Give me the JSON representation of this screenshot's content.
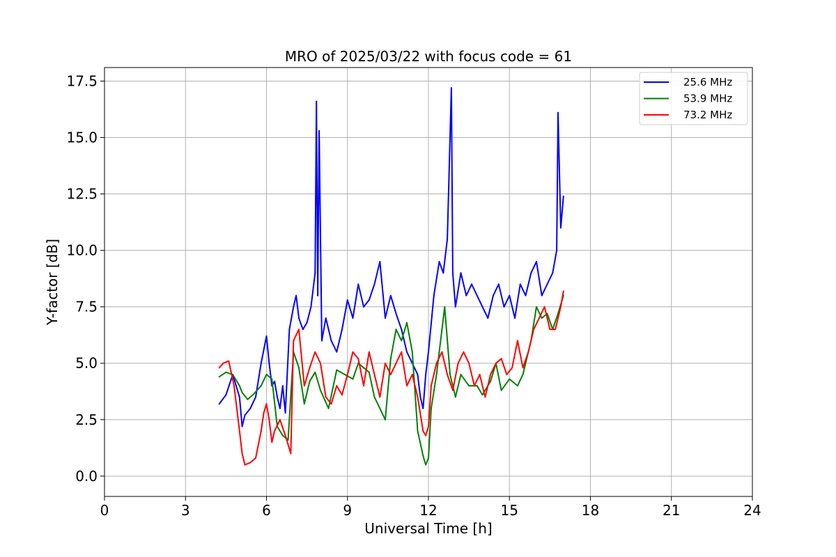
{
  "chart_data": {
    "type": "line",
    "title": "MRO of 2025/03/22 with focus code = 61",
    "xlabel": "Universal Time [h]",
    "ylabel": "Y-factor [dB]",
    "xlim": [
      0,
      24
    ],
    "ylim": [
      -0.9,
      18.1
    ],
    "xticks": [
      0,
      3,
      6,
      9,
      12,
      15,
      18,
      21,
      24
    ],
    "xtick_labels": [
      "0",
      "3",
      "6",
      "9",
      "12",
      "15",
      "18",
      "21",
      "24"
    ],
    "yticks": [
      0.0,
      2.5,
      5.0,
      7.5,
      10.0,
      12.5,
      15.0,
      17.5
    ],
    "ytick_labels": [
      "0.0",
      "2.5",
      "5.0",
      "7.5",
      "10.0",
      "12.5",
      "15.0",
      "17.5"
    ],
    "grid": true,
    "legend_position": "top-right",
    "series": [
      {
        "name": "25.6 MHz",
        "color": "#0000ff",
        "x": [
          4.25,
          4.5,
          4.75,
          5.0,
          5.1,
          5.2,
          5.4,
          5.6,
          5.8,
          6.0,
          6.1,
          6.2,
          6.3,
          6.4,
          6.5,
          6.6,
          6.7,
          6.85,
          7.0,
          7.1,
          7.2,
          7.35,
          7.5,
          7.65,
          7.8,
          7.85,
          7.9,
          7.95,
          8.05,
          8.2,
          8.4,
          8.6,
          8.8,
          9.0,
          9.2,
          9.4,
          9.6,
          9.8,
          10.0,
          10.2,
          10.4,
          10.6,
          10.8,
          11.0,
          11.2,
          11.4,
          11.6,
          11.7,
          11.8,
          11.9,
          12.0,
          12.2,
          12.4,
          12.55,
          12.7,
          12.85,
          12.9,
          13.0,
          13.2,
          13.4,
          13.6,
          13.8,
          14.0,
          14.2,
          14.4,
          14.6,
          14.8,
          15.0,
          15.2,
          15.4,
          15.6,
          15.8,
          16.0,
          16.2,
          16.4,
          16.6,
          16.75,
          16.8,
          16.9,
          17.0
        ],
        "y": [
          3.2,
          3.6,
          4.5,
          3.5,
          2.2,
          2.7,
          3.0,
          3.5,
          5.0,
          6.2,
          5.0,
          4.0,
          4.2,
          3.5,
          3.0,
          4.0,
          2.8,
          6.5,
          7.5,
          8.0,
          7.0,
          6.5,
          6.8,
          7.5,
          9.0,
          16.6,
          8.0,
          15.3,
          6.0,
          7.0,
          6.0,
          5.5,
          6.5,
          7.8,
          7.0,
          8.5,
          7.5,
          7.8,
          8.5,
          9.5,
          7.0,
          8.0,
          7.2,
          6.5,
          5.5,
          5.0,
          4.5,
          3.5,
          3.0,
          4.5,
          5.5,
          8.0,
          9.5,
          9.0,
          10.5,
          17.2,
          9.0,
          7.5,
          9.0,
          8.0,
          8.5,
          8.0,
          7.5,
          7.0,
          8.0,
          8.5,
          7.5,
          8.0,
          7.0,
          8.5,
          8.0,
          9.0,
          9.5,
          8.0,
          8.5,
          9.0,
          10.0,
          16.1,
          11.0,
          12.4
        ]
      },
      {
        "name": "53.9 MHz",
        "color": "#008000",
        "x": [
          4.25,
          4.5,
          4.75,
          5.0,
          5.1,
          5.3,
          5.5,
          5.8,
          6.0,
          6.2,
          6.4,
          6.6,
          6.8,
          7.0,
          7.2,
          7.4,
          7.6,
          7.8,
          8.0,
          8.3,
          8.6,
          8.9,
          9.2,
          9.4,
          9.6,
          9.8,
          10.0,
          10.2,
          10.4,
          10.6,
          10.8,
          11.0,
          11.2,
          11.4,
          11.6,
          11.8,
          11.9,
          12.0,
          12.1,
          12.3,
          12.5,
          12.6,
          12.8,
          13.0,
          13.2,
          13.5,
          13.8,
          14.0,
          14.3,
          14.5,
          14.7,
          15.0,
          15.3,
          15.5,
          15.8,
          16.0,
          16.2,
          16.4,
          16.6,
          16.8,
          17.0
        ],
        "y": [
          4.4,
          4.6,
          4.5,
          4.0,
          3.7,
          3.4,
          3.6,
          4.0,
          4.5,
          4.3,
          2.2,
          1.8,
          1.6,
          5.5,
          4.8,
          3.2,
          4.2,
          4.6,
          3.8,
          3.0,
          4.7,
          4.5,
          4.3,
          5.0,
          4.8,
          4.6,
          3.5,
          3.0,
          2.5,
          5.2,
          6.5,
          6.0,
          6.8,
          5.5,
          2.0,
          0.9,
          0.5,
          0.8,
          3.0,
          4.5,
          6.5,
          7.5,
          4.5,
          3.5,
          4.5,
          4.0,
          4.0,
          3.6,
          4.2,
          5.0,
          3.8,
          4.3,
          4.0,
          4.5,
          6.0,
          7.5,
          7.0,
          7.2,
          6.5,
          7.2,
          8.0
        ]
      },
      {
        "name": "73.2 MHz",
        "color": "#ff0000",
        "x": [
          4.25,
          4.4,
          4.6,
          4.8,
          5.0,
          5.1,
          5.2,
          5.4,
          5.6,
          5.8,
          5.9,
          6.0,
          6.1,
          6.2,
          6.3,
          6.5,
          6.7,
          6.9,
          7.0,
          7.2,
          7.4,
          7.6,
          7.8,
          8.0,
          8.2,
          8.4,
          8.6,
          8.8,
          9.0,
          9.2,
          9.4,
          9.6,
          9.8,
          10.0,
          10.2,
          10.4,
          10.6,
          10.8,
          11.0,
          11.2,
          11.4,
          11.6,
          11.8,
          11.9,
          12.0,
          12.1,
          12.3,
          12.5,
          12.7,
          12.9,
          13.1,
          13.3,
          13.5,
          13.7,
          13.9,
          14.1,
          14.3,
          14.5,
          14.7,
          14.9,
          15.1,
          15.3,
          15.5,
          15.7,
          15.9,
          16.1,
          16.3,
          16.5,
          16.7,
          16.9,
          17.0
        ],
        "y": [
          4.8,
          5.0,
          5.1,
          4.0,
          2.0,
          1.0,
          0.5,
          0.6,
          0.8,
          2.0,
          2.8,
          3.2,
          2.5,
          1.5,
          2.0,
          2.5,
          1.8,
          1.0,
          6.0,
          6.5,
          4.0,
          4.8,
          5.5,
          5.0,
          3.5,
          3.2,
          4.0,
          3.6,
          4.5,
          5.5,
          5.2,
          4.0,
          5.5,
          4.5,
          3.5,
          5.0,
          4.5,
          5.0,
          5.5,
          4.0,
          4.5,
          3.5,
          2.0,
          1.8,
          2.2,
          4.0,
          5.0,
          5.5,
          4.5,
          3.8,
          5.0,
          5.5,
          5.0,
          4.0,
          4.5,
          3.5,
          4.5,
          5.0,
          5.2,
          4.5,
          4.8,
          6.0,
          4.8,
          5.5,
          6.5,
          7.0,
          7.5,
          6.5,
          6.5,
          7.5,
          8.2
        ]
      }
    ]
  }
}
